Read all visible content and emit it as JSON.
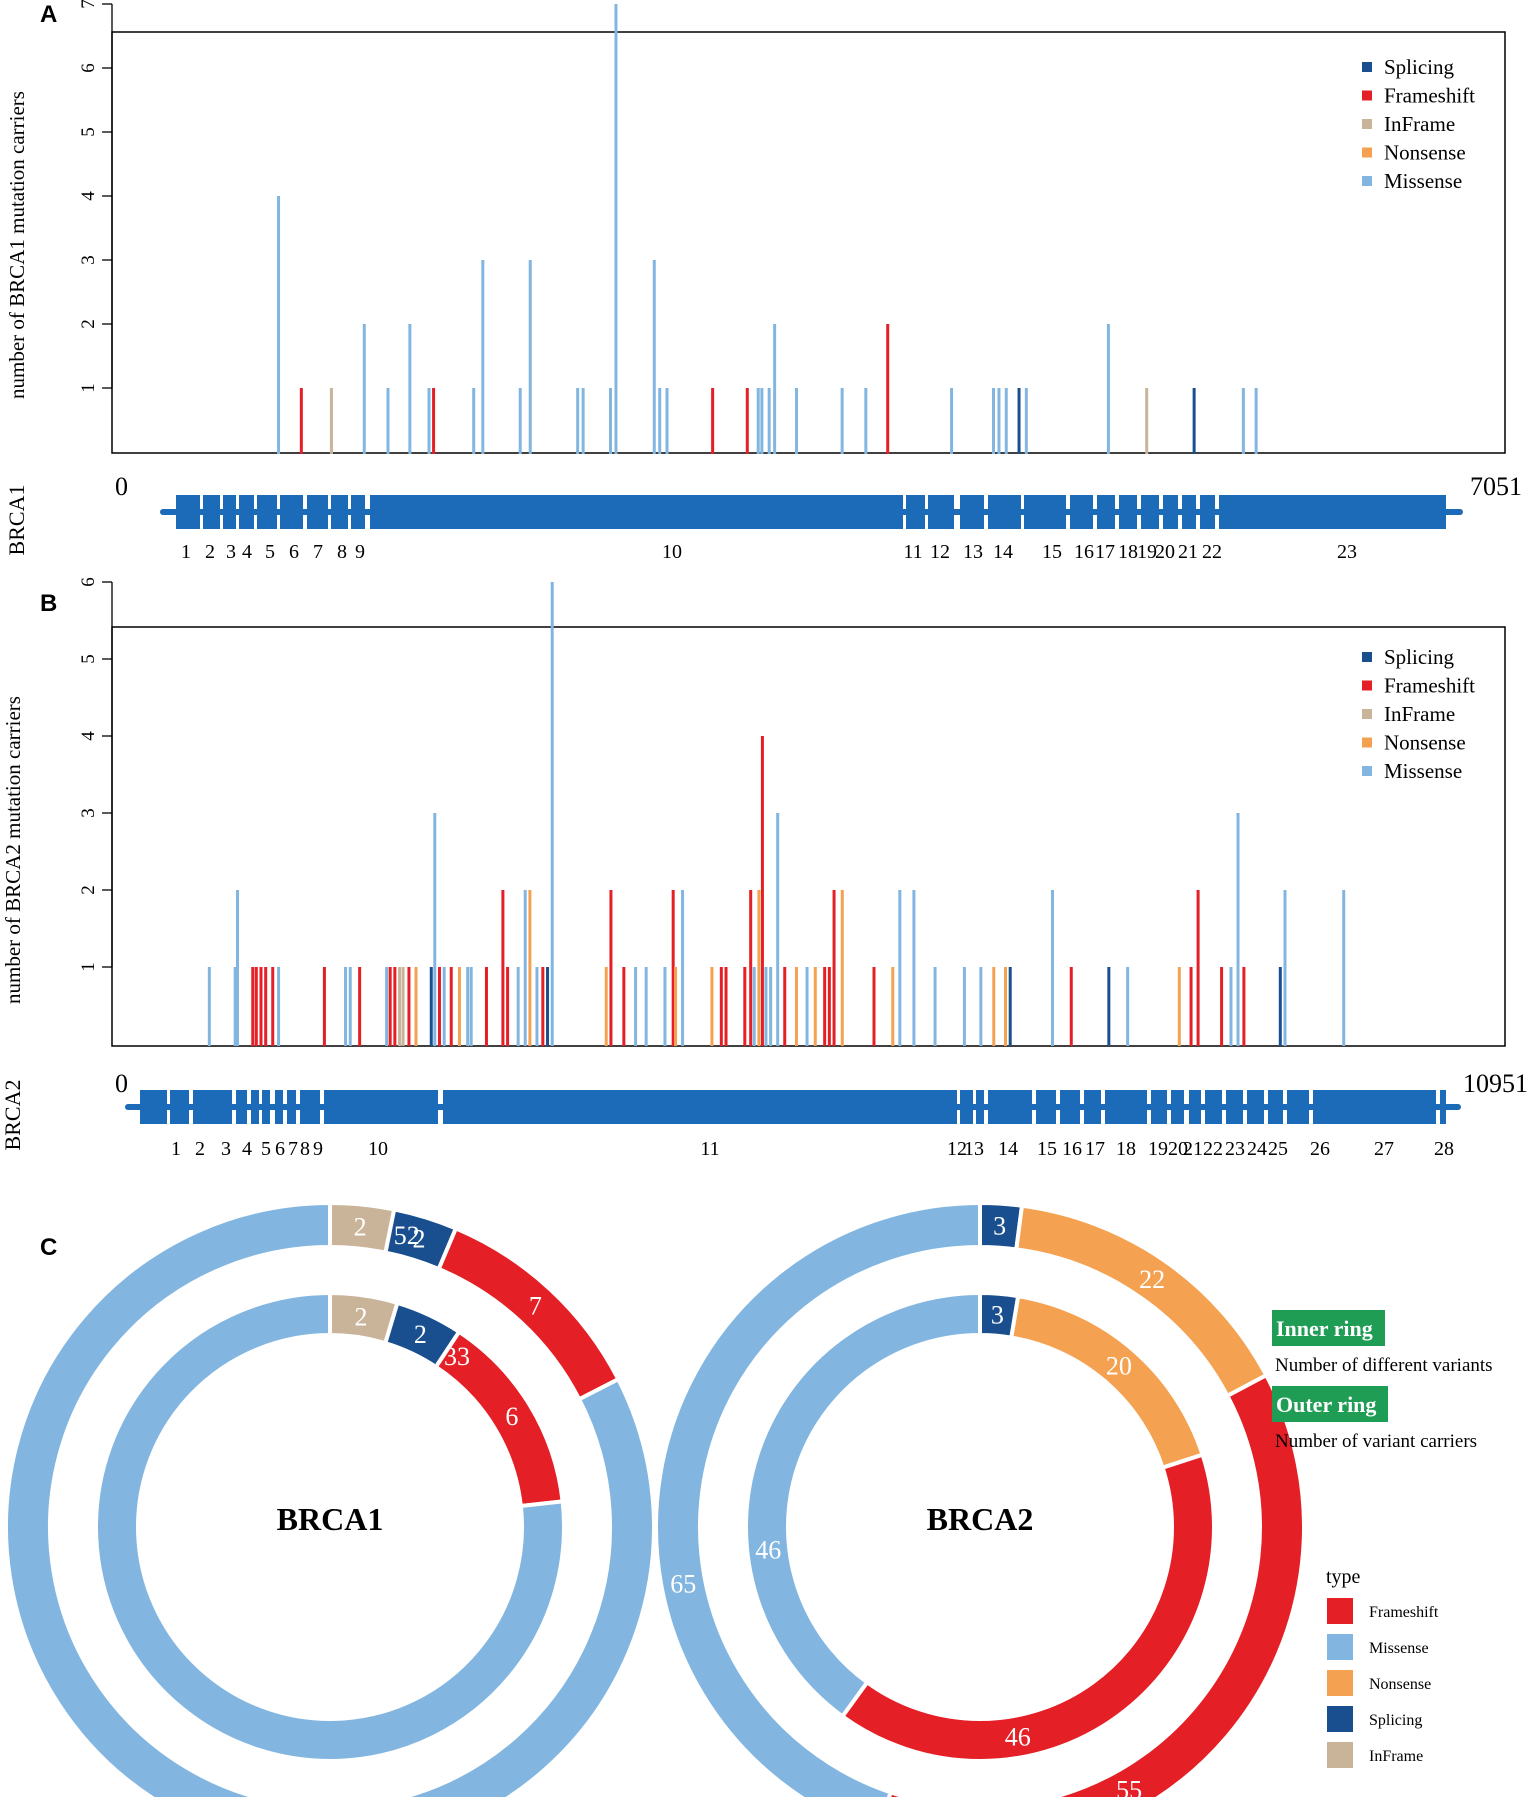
{
  "colors": {
    "Splicing": "#1a4f8f",
    "Frameshift": "#e41f26",
    "InFrame": "#c9b49a",
    "Nonsense": "#f4a251",
    "Missense": "#82b6e1",
    "gene": "#1c6bb8",
    "badge": "#1f9d55"
  },
  "panels": {
    "a": "A",
    "b": "B",
    "c": "C"
  },
  "chart_data": [
    {
      "type": "bar",
      "id": "brca1_lollipop",
      "title": "",
      "ylabel": "number of BRCA1 mutation carriers",
      "ylim": [
        0,
        7.3
      ],
      "xlim": [
        0,
        7051
      ],
      "yticks": [
        "1",
        "2",
        "3",
        "4",
        "5",
        "6",
        "7"
      ],
      "legend": [
        "Splicing",
        "Frameshift",
        "InFrame",
        "Nonsense",
        "Missense"
      ],
      "mutations": [
        {
          "x": 650,
          "n": 4,
          "type": "Missense"
        },
        {
          "x": 775,
          "n": 1,
          "type": "Frameshift"
        },
        {
          "x": 940,
          "n": 1,
          "type": "InFrame"
        },
        {
          "x": 1120,
          "n": 2,
          "type": "Missense"
        },
        {
          "x": 1250,
          "n": 1,
          "type": "Missense"
        },
        {
          "x": 1370,
          "n": 2,
          "type": "Missense"
        },
        {
          "x": 1475,
          "n": 1,
          "type": "Missense"
        },
        {
          "x": 1500,
          "n": 1,
          "type": "Frameshift"
        },
        {
          "x": 1720,
          "n": 1,
          "type": "Missense"
        },
        {
          "x": 1770,
          "n": 3,
          "type": "Missense"
        },
        {
          "x": 1975,
          "n": 1,
          "type": "Missense"
        },
        {
          "x": 2030,
          "n": 3,
          "type": "Missense"
        },
        {
          "x": 2290,
          "n": 1,
          "type": "Missense"
        },
        {
          "x": 2320,
          "n": 1,
          "type": "Missense"
        },
        {
          "x": 2470,
          "n": 1,
          "type": "Missense"
        },
        {
          "x": 2500,
          "n": 7,
          "type": "Missense"
        },
        {
          "x": 2710,
          "n": 3,
          "type": "Missense"
        },
        {
          "x": 2740,
          "n": 1,
          "type": "Missense"
        },
        {
          "x": 2780,
          "n": 1,
          "type": "Missense"
        },
        {
          "x": 3030,
          "n": 1,
          "type": "Frameshift"
        },
        {
          "x": 3220,
          "n": 1,
          "type": "Frameshift"
        },
        {
          "x": 3280,
          "n": 1,
          "type": "Missense"
        },
        {
          "x": 3300,
          "n": 1,
          "type": "Missense"
        },
        {
          "x": 3340,
          "n": 1,
          "type": "Missense"
        },
        {
          "x": 3370,
          "n": 2,
          "type": "Missense"
        },
        {
          "x": 3490,
          "n": 1,
          "type": "Missense"
        },
        {
          "x": 3740,
          "n": 1,
          "type": "Missense"
        },
        {
          "x": 3870,
          "n": 1,
          "type": "Missense"
        },
        {
          "x": 3990,
          "n": 2,
          "type": "Frameshift"
        },
        {
          "x": 4340,
          "n": 1,
          "type": "Missense"
        },
        {
          "x": 4570,
          "n": 1,
          "type": "Missense"
        },
        {
          "x": 4600,
          "n": 1,
          "type": "Missense"
        },
        {
          "x": 4640,
          "n": 1,
          "type": "Missense"
        },
        {
          "x": 4710,
          "n": 1,
          "type": "Splicing"
        },
        {
          "x": 4750,
          "n": 1,
          "type": "Missense"
        },
        {
          "x": 5200,
          "n": 2,
          "type": "Missense"
        },
        {
          "x": 5410,
          "n": 1,
          "type": "InFrame"
        },
        {
          "x": 5670,
          "n": 1,
          "type": "Splicing"
        },
        {
          "x": 5940,
          "n": 1,
          "type": "Missense"
        },
        {
          "x": 6010,
          "n": 1,
          "type": "Missense"
        }
      ]
    },
    {
      "type": "bar",
      "id": "brca2_lollipop",
      "title": "",
      "ylabel": "number of BRCA2 mutation carriers",
      "ylim": [
        0,
        6.2
      ],
      "xlim": [
        0,
        10951
      ],
      "yticks": [
        "1",
        "2",
        "3",
        "4",
        "5",
        "6"
      ],
      "legend": [
        "Splicing",
        "Frameshift",
        "InFrame",
        "Nonsense",
        "Missense"
      ],
      "mutations": [
        {
          "x": 420,
          "n": 1,
          "type": "Missense"
        },
        {
          "x": 640,
          "n": 1,
          "type": "Missense"
        },
        {
          "x": 660,
          "n": 2,
          "type": "Missense"
        },
        {
          "x": 790,
          "n": 1,
          "type": "Frameshift"
        },
        {
          "x": 820,
          "n": 1,
          "type": "Frameshift"
        },
        {
          "x": 860,
          "n": 1,
          "type": "Frameshift"
        },
        {
          "x": 900,
          "n": 1,
          "type": "Frameshift"
        },
        {
          "x": 960,
          "n": 1,
          "type": "Frameshift"
        },
        {
          "x": 1010,
          "n": 1,
          "type": "Missense"
        },
        {
          "x": 1400,
          "n": 1,
          "type": "Frameshift"
        },
        {
          "x": 1580,
          "n": 1,
          "type": "Missense"
        },
        {
          "x": 1620,
          "n": 1,
          "type": "Missense"
        },
        {
          "x": 1700,
          "n": 1,
          "type": "Frameshift"
        },
        {
          "x": 1930,
          "n": 1,
          "type": "Missense"
        },
        {
          "x": 1960,
          "n": 1,
          "type": "Frameshift"
        },
        {
          "x": 2000,
          "n": 1,
          "type": "Frameshift"
        },
        {
          "x": 2040,
          "n": 1,
          "type": "InFrame"
        },
        {
          "x": 2070,
          "n": 1,
          "type": "InFrame"
        },
        {
          "x": 2120,
          "n": 1,
          "type": "Frameshift"
        },
        {
          "x": 2180,
          "n": 1,
          "type": "Nonsense"
        },
        {
          "x": 2310,
          "n": 1,
          "type": "Splicing"
        },
        {
          "x": 2340,
          "n": 3,
          "type": "Missense"
        },
        {
          "x": 2380,
          "n": 1,
          "type": "Frameshift"
        },
        {
          "x": 2420,
          "n": 1,
          "type": "Missense"
        },
        {
          "x": 2480,
          "n": 1,
          "type": "Frameshift"
        },
        {
          "x": 2550,
          "n": 1,
          "type": "Nonsense"
        },
        {
          "x": 2620,
          "n": 1,
          "type": "Missense"
        },
        {
          "x": 2650,
          "n": 1,
          "type": "Missense"
        },
        {
          "x": 2780,
          "n": 1,
          "type": "Frameshift"
        },
        {
          "x": 2920,
          "n": 2,
          "type": "Frameshift"
        },
        {
          "x": 2960,
          "n": 1,
          "type": "Frameshift"
        },
        {
          "x": 3050,
          "n": 1,
          "type": "Missense"
        },
        {
          "x": 3110,
          "n": 2,
          "type": "Missense"
        },
        {
          "x": 3150,
          "n": 2,
          "type": "Nonsense"
        },
        {
          "x": 3210,
          "n": 1,
          "type": "Missense"
        },
        {
          "x": 3260,
          "n": 1,
          "type": "Frameshift"
        },
        {
          "x": 3300,
          "n": 1,
          "type": "Splicing"
        },
        {
          "x": 3340,
          "n": 6,
          "type": "Missense"
        },
        {
          "x": 3800,
          "n": 1,
          "type": "Nonsense"
        },
        {
          "x": 3840,
          "n": 2,
          "type": "Frameshift"
        },
        {
          "x": 3950,
          "n": 1,
          "type": "Frameshift"
        },
        {
          "x": 4050,
          "n": 1,
          "type": "Missense"
        },
        {
          "x": 4140,
          "n": 1,
          "type": "Missense"
        },
        {
          "x": 4300,
          "n": 1,
          "type": "Missense"
        },
        {
          "x": 4370,
          "n": 2,
          "type": "Frameshift"
        },
        {
          "x": 4390,
          "n": 1,
          "type": "Nonsense"
        },
        {
          "x": 4450,
          "n": 2,
          "type": "Missense"
        },
        {
          "x": 4700,
          "n": 1,
          "type": "Nonsense"
        },
        {
          "x": 4780,
          "n": 1,
          "type": "Frameshift"
        },
        {
          "x": 4820,
          "n": 1,
          "type": "Frameshift"
        },
        {
          "x": 4980,
          "n": 1,
          "type": "Frameshift"
        },
        {
          "x": 5030,
          "n": 2,
          "type": "Frameshift"
        },
        {
          "x": 5060,
          "n": 1,
          "type": "Missense"
        },
        {
          "x": 5100,
          "n": 2,
          "type": "Nonsense"
        },
        {
          "x": 5130,
          "n": 4,
          "type": "Frameshift"
        },
        {
          "x": 5160,
          "n": 1,
          "type": "Missense"
        },
        {
          "x": 5200,
          "n": 1,
          "type": "Missense"
        },
        {
          "x": 5260,
          "n": 3,
          "type": "Missense"
        },
        {
          "x": 5320,
          "n": 1,
          "type": "Frameshift"
        },
        {
          "x": 5420,
          "n": 1,
          "type": "Nonsense"
        },
        {
          "x": 5510,
          "n": 1,
          "type": "Missense"
        },
        {
          "x": 5580,
          "n": 1,
          "type": "Nonsense"
        },
        {
          "x": 5660,
          "n": 1,
          "type": "Frameshift"
        },
        {
          "x": 5700,
          "n": 1,
          "type": "Frameshift"
        },
        {
          "x": 5740,
          "n": 2,
          "type": "Frameshift"
        },
        {
          "x": 5810,
          "n": 2,
          "type": "Nonsense"
        },
        {
          "x": 6080,
          "n": 1,
          "type": "Frameshift"
        },
        {
          "x": 6240,
          "n": 1,
          "type": "Nonsense"
        },
        {
          "x": 6300,
          "n": 2,
          "type": "Missense"
        },
        {
          "x": 6420,
          "n": 2,
          "type": "Missense"
        },
        {
          "x": 6600,
          "n": 1,
          "type": "Missense"
        },
        {
          "x": 6850,
          "n": 1,
          "type": "Missense"
        },
        {
          "x": 6990,
          "n": 1,
          "type": "Missense"
        },
        {
          "x": 7100,
          "n": 1,
          "type": "Nonsense"
        },
        {
          "x": 7200,
          "n": 1,
          "type": "Nonsense"
        },
        {
          "x": 7240,
          "n": 1,
          "type": "Splicing"
        },
        {
          "x": 7600,
          "n": 2,
          "type": "Missense"
        },
        {
          "x": 7760,
          "n": 1,
          "type": "Frameshift"
        },
        {
          "x": 8080,
          "n": 1,
          "type": "Splicing"
        },
        {
          "x": 8240,
          "n": 1,
          "type": "Missense"
        },
        {
          "x": 8680,
          "n": 1,
          "type": "Nonsense"
        },
        {
          "x": 8780,
          "n": 1,
          "type": "Frameshift"
        },
        {
          "x": 8840,
          "n": 2,
          "type": "Frameshift"
        },
        {
          "x": 9040,
          "n": 1,
          "type": "Frameshift"
        },
        {
          "x": 9120,
          "n": 1,
          "type": "Missense"
        },
        {
          "x": 9180,
          "n": 3,
          "type": "Missense"
        },
        {
          "x": 9230,
          "n": 1,
          "type": "Frameshift"
        },
        {
          "x": 9540,
          "n": 1,
          "type": "Splicing"
        },
        {
          "x": 9580,
          "n": 2,
          "type": "Missense"
        },
        {
          "x": 10080,
          "n": 2,
          "type": "Missense"
        }
      ]
    },
    {
      "type": "pie",
      "id": "brca1_donut",
      "center_label": "BRCA1",
      "order": [
        "InFrame",
        "Splicing",
        "Frameshift",
        "Missense"
      ],
      "outer": [
        2,
        2,
        7,
        52
      ],
      "inner": [
        2,
        2,
        6,
        33
      ]
    },
    {
      "type": "pie",
      "id": "brca2_donut",
      "center_label": "BRCA2",
      "order": [
        "Splicing",
        "Nonsense",
        "Frameshift",
        "Missense"
      ],
      "outer": [
        3,
        22,
        55,
        65
      ],
      "inner": [
        3,
        20,
        46,
        46
      ]
    }
  ],
  "brca1_gene": {
    "name": "BRCA1",
    "start": "0",
    "end": "7051",
    "exons": [
      "1",
      "2",
      "3",
      "4",
      "5",
      "6",
      "7",
      "8",
      "9",
      "10",
      "11",
      "12",
      "13",
      "14",
      "15",
      "16",
      "17",
      "18",
      "19",
      "20",
      "21",
      "22",
      "23"
    ]
  },
  "brca2_gene": {
    "name": "BRCA2",
    "start": "0",
    "end": "10951",
    "exons": [
      "1",
      "2",
      "3",
      "4",
      "5",
      "6",
      "7",
      "8",
      "9",
      "10",
      "11",
      "12",
      "13",
      "14",
      "15",
      "16",
      "17",
      "18",
      "19",
      "20",
      "21",
      "22",
      "23",
      "24",
      "25",
      "26",
      "27",
      "28"
    ]
  },
  "ring_legend": {
    "inner_badge": "Inner ring",
    "inner_desc": "Number of different variants",
    "outer_badge": "Outer ring",
    "outer_desc": "Number of variant carriers"
  },
  "type_legend": {
    "title": "type",
    "items": [
      "Frameshift",
      "Missense",
      "Nonsense",
      "Splicing",
      "InFrame"
    ]
  }
}
